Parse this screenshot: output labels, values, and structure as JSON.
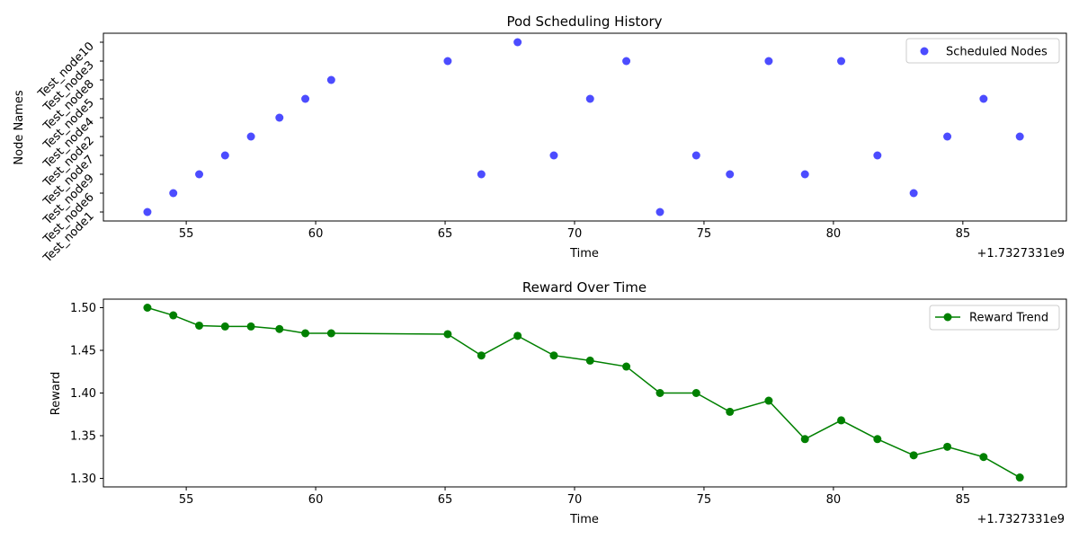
{
  "chart_data": [
    {
      "type": "scatter",
      "title": "Pod Scheduling History",
      "xlabel": "Time",
      "ylabel": "Node Names",
      "x_offset_label": "+1.7327331e9",
      "xlim": [
        51.8,
        89.0
      ],
      "x_ticks": [
        55,
        60,
        65,
        70,
        75,
        80,
        85
      ],
      "y_categories": [
        "Test_node1",
        "Test_node6",
        "Test_node9",
        "Test_node7",
        "Test_node2",
        "Test_node4",
        "Test_node5",
        "Test_node8",
        "Test_node3",
        "Test_node10"
      ],
      "legend_position": "top-right",
      "series": [
        {
          "name": "Scheduled Nodes",
          "color": "#0000ff",
          "x": [
            53.5,
            54.5,
            55.5,
            56.5,
            57.5,
            58.6,
            59.6,
            60.6,
            65.1,
            66.4,
            67.8,
            69.2,
            70.6,
            72.0,
            73.3,
            74.7,
            76.0,
            77.5,
            78.9,
            80.3,
            81.7,
            83.1,
            84.4,
            85.8,
            87.2
          ],
          "y": [
            "Test_node1",
            "Test_node6",
            "Test_node9",
            "Test_node7",
            "Test_node2",
            "Test_node4",
            "Test_node5",
            "Test_node8",
            "Test_node3",
            "Test_node9",
            "Test_node10",
            "Test_node7",
            "Test_node5",
            "Test_node3",
            "Test_node1",
            "Test_node7",
            "Test_node9",
            "Test_node3",
            "Test_node9",
            "Test_node3",
            "Test_node7",
            "Test_node6",
            "Test_node2",
            "Test_node5",
            "Test_node2"
          ]
        }
      ]
    },
    {
      "type": "line",
      "title": "Reward Over Time",
      "xlabel": "Time",
      "ylabel": "Reward",
      "x_offset_label": "+1.7327331e9",
      "xlim": [
        51.8,
        89.0
      ],
      "ylim": [
        1.29,
        1.51
      ],
      "x_ticks": [
        55,
        60,
        65,
        70,
        75,
        80,
        85
      ],
      "y_ticks": [
        "1.30",
        "1.35",
        "1.40",
        "1.45",
        "1.50"
      ],
      "legend_position": "top-right",
      "series": [
        {
          "name": "Reward Trend",
          "color": "#008000",
          "x": [
            53.5,
            54.5,
            55.5,
            56.5,
            57.5,
            58.6,
            59.6,
            60.6,
            65.1,
            66.4,
            67.8,
            69.2,
            70.6,
            72.0,
            73.3,
            74.7,
            76.0,
            77.5,
            78.9,
            80.3,
            81.7,
            83.1,
            84.4,
            85.8,
            87.2
          ],
          "y": [
            1.5,
            1.491,
            1.479,
            1.478,
            1.478,
            1.475,
            1.47,
            1.47,
            1.469,
            1.444,
            1.467,
            1.444,
            1.438,
            1.431,
            1.4,
            1.4,
            1.378,
            1.391,
            1.346,
            1.368,
            1.346,
            1.327,
            1.337,
            1.325,
            1.301
          ]
        }
      ]
    }
  ]
}
